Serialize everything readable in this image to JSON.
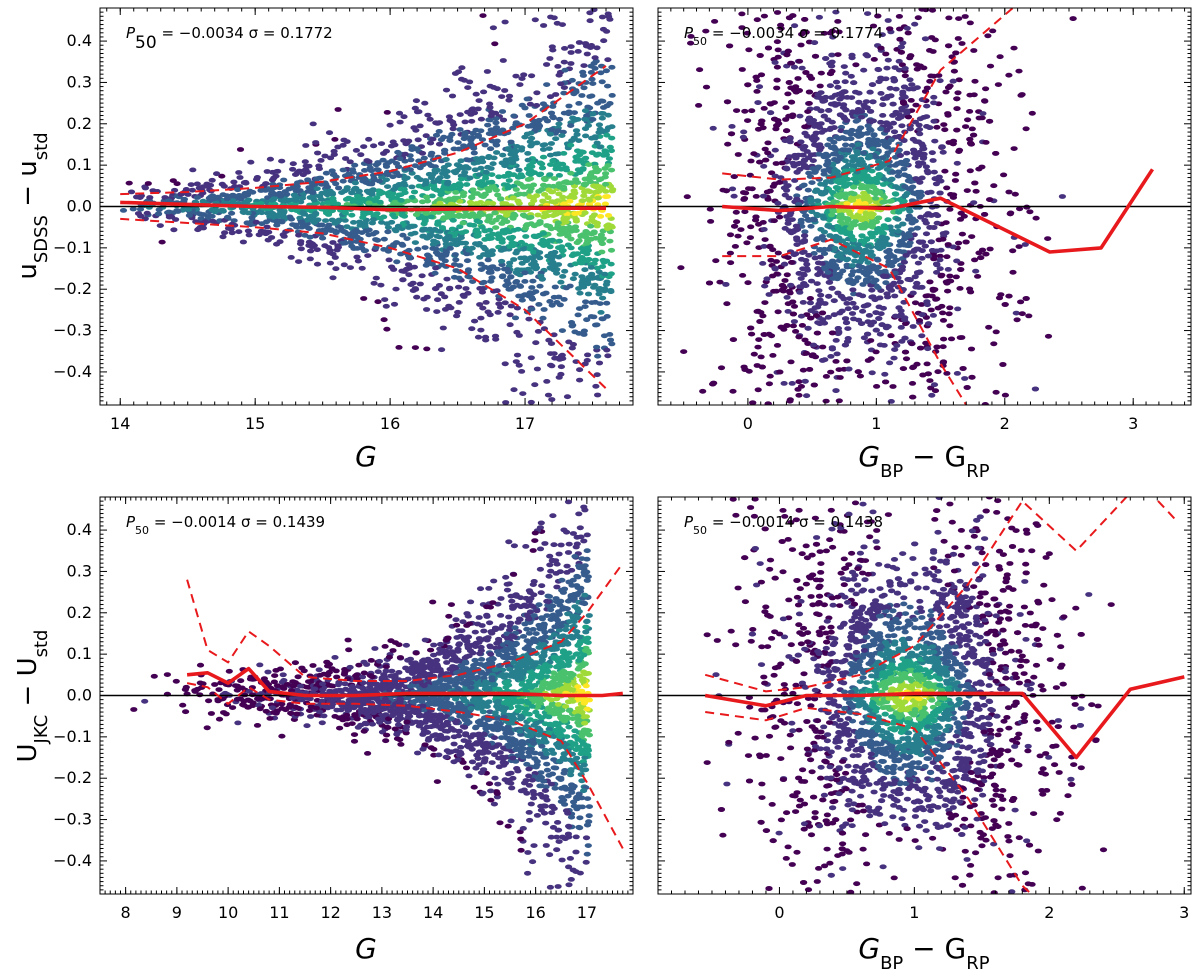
{
  "chart_data": [
    {
      "type": "scatter",
      "subtype": "hexbin-density",
      "xlabel": "G",
      "ylabel_main": "u",
      "ylabel_sub1": "SDSS",
      "ylabel_mid": " − u",
      "ylabel_sub2": "std",
      "annotation": "P50 = −0.0034  σ = 0.1772",
      "ann_p": "P",
      "ann_p_sub": "50",
      "ann_rest": " = −0.0034   σ = 0.1772",
      "xlim": [
        13.85,
        17.8
      ],
      "ylim": [
        -0.48,
        0.48
      ],
      "xticks": [
        14,
        15,
        16,
        17
      ],
      "yticks": [
        -0.4,
        -0.3,
        -0.2,
        -0.1,
        0.0,
        0.1,
        0.2,
        0.3,
        0.4
      ],
      "ytick_labels": [
        "−0.4",
        "−0.3",
        "−0.2",
        "−0.1",
        "0.0",
        "0.1",
        "0.2",
        "0.3",
        "0.4"
      ],
      "density": {
        "x_range": [
          14.0,
          17.65
        ],
        "center_x": 16.8,
        "spread_start": 0.02,
        "spread_end": 0.3
      },
      "median_line": {
        "x": [
          14.0,
          14.5,
          15.0,
          15.5,
          16.0,
          16.5,
          17.0,
          17.6
        ],
        "y": [
          0.01,
          0.005,
          0.0,
          -0.002,
          -0.008,
          -0.006,
          -0.004,
          -0.004
        ]
      },
      "upper_dashed": {
        "x": [
          14.0,
          14.5,
          15.0,
          15.5,
          16.0,
          16.5,
          17.0,
          17.6
        ],
        "y": [
          0.03,
          0.035,
          0.045,
          0.06,
          0.085,
          0.13,
          0.2,
          0.34
        ]
      },
      "lower_dashed": {
        "x": [
          14.0,
          14.5,
          15.0,
          15.5,
          16.0,
          16.5,
          17.0,
          17.6
        ],
        "y": [
          -0.03,
          -0.04,
          -0.05,
          -0.065,
          -0.1,
          -0.15,
          -0.25,
          -0.44
        ]
      }
    },
    {
      "type": "scatter",
      "subtype": "hexbin-density",
      "xlabel_main": "G",
      "xlabel_sub1": "BP",
      "xlabel_mid": " − G",
      "xlabel_sub2": "RP",
      "ann_p": "P",
      "ann_p_sub": "50",
      "ann_rest": " = −0.0034   σ = 0.1774",
      "xlim": [
        -0.7,
        3.45
      ],
      "ylim": [
        -0.48,
        0.48
      ],
      "xticks": [
        0,
        1,
        2,
        3
      ],
      "yticks": [
        -0.4,
        -0.3,
        -0.2,
        -0.1,
        0.0,
        0.1,
        0.2,
        0.3,
        0.4
      ],
      "density": {
        "x_range": [
          -0.55,
          3.1
        ],
        "center_x": 0.88
      },
      "median_line": {
        "x": [
          -0.2,
          0.25,
          0.65,
          1.1,
          1.5,
          2.35,
          2.75,
          3.15
        ],
        "y": [
          0.0,
          -0.01,
          0.0,
          -0.005,
          0.02,
          -0.11,
          -0.1,
          0.09
        ]
      },
      "upper_dashed": {
        "x": [
          -0.2,
          0.25,
          0.65,
          1.1,
          1.5,
          2.1
        ],
        "y": [
          0.08,
          0.065,
          0.07,
          0.11,
          0.33,
          0.49
        ]
      },
      "lower_dashed": {
        "x": [
          -0.2,
          0.25,
          0.65,
          1.1,
          1.5,
          1.72
        ],
        "y": [
          -0.12,
          -0.12,
          -0.08,
          -0.15,
          -0.38,
          -0.49
        ]
      }
    },
    {
      "type": "scatter",
      "subtype": "hexbin-density",
      "xlabel": "G",
      "ylabel_main": "U",
      "ylabel_sub1": "JKC",
      "ylabel_mid": " − U",
      "ylabel_sub2": "std",
      "ann_p": "P",
      "ann_p_sub": "50",
      "ann_rest": " = −0.0014   σ = 0.1439",
      "xlim": [
        7.5,
        17.9
      ],
      "ylim": [
        -0.48,
        0.48
      ],
      "xticks": [
        8,
        9,
        10,
        11,
        12,
        13,
        14,
        15,
        16,
        17
      ],
      "yticks": [
        -0.4,
        -0.3,
        -0.2,
        -0.1,
        0.0,
        0.1,
        0.2,
        0.3,
        0.4
      ],
      "density": {
        "x_range": [
          8.0,
          17.05
        ],
        "center_x": 16.3
      },
      "median_line": {
        "x": [
          9.2,
          9.6,
          10.0,
          10.4,
          10.8,
          11.5,
          12.5,
          13.5,
          14.5,
          15.5,
          16.5,
          17.0,
          17.3,
          17.7
        ],
        "y": [
          0.05,
          0.055,
          0.03,
          0.065,
          0.01,
          0.0,
          0.0,
          0.005,
          0.005,
          0.005,
          0.0,
          0.0,
          0.0,
          0.005
        ]
      },
      "upper_dashed": {
        "x": [
          9.2,
          9.6,
          10.0,
          10.4,
          10.8,
          11.5,
          12.5,
          13.5,
          14.5,
          15.5,
          16.5,
          17.0,
          17.7
        ],
        "y": [
          0.28,
          0.11,
          0.08,
          0.155,
          0.12,
          0.045,
          0.035,
          0.035,
          0.05,
          0.08,
          0.13,
          0.2,
          0.32
        ]
      },
      "lower_dashed": {
        "x": [
          9.2,
          9.6,
          10.0,
          10.4,
          10.8,
          11.5,
          12.5,
          13.5,
          14.5,
          15.5,
          16.5,
          17.0,
          17.7
        ],
        "y": [
          0.03,
          0.02,
          -0.02,
          0.02,
          -0.01,
          -0.02,
          -0.02,
          -0.025,
          -0.04,
          -0.06,
          -0.11,
          -0.21,
          -0.37
        ]
      }
    },
    {
      "type": "scatter",
      "subtype": "hexbin-density",
      "xlabel_main": "G",
      "xlabel_sub1": "BP",
      "xlabel_mid": " − G",
      "xlabel_sub2": "RP",
      "ann_p": "P",
      "ann_p_sub": "50",
      "ann_rest": " = −0.0014   σ = 0.1438",
      "xlim": [
        -0.9,
        3.05
      ],
      "ylim": [
        -0.48,
        0.48
      ],
      "xticks": [
        0,
        1,
        2,
        3
      ],
      "yticks": [
        -0.4,
        -0.3,
        -0.2,
        -0.1,
        0.0,
        0.1,
        0.2,
        0.3,
        0.4
      ],
      "density": {
        "x_range": [
          -0.55,
          2.5
        ],
        "center_x": 0.95
      },
      "median_line": {
        "x": [
          -0.55,
          -0.1,
          0.2,
          0.6,
          1.0,
          1.4,
          1.8,
          2.2,
          2.6,
          3.0
        ],
        "y": [
          0.0,
          -0.025,
          0.0,
          0.0,
          0.005,
          0.005,
          0.005,
          -0.15,
          0.015,
          0.045
        ]
      },
      "upper_dashed": {
        "x": [
          -0.55,
          -0.1,
          0.2,
          0.6,
          1.0,
          1.4,
          1.8,
          2.2,
          2.6,
          2.75,
          2.95
        ],
        "y": [
          0.05,
          0.01,
          0.02,
          0.05,
          0.12,
          0.27,
          0.47,
          0.35,
          0.49,
          0.49,
          0.42
        ]
      },
      "lower_dashed": {
        "x": [
          -0.55,
          -0.1,
          0.2,
          0.6,
          1.0,
          1.4,
          1.8,
          1.9
        ],
        "y": [
          -0.04,
          -0.06,
          -0.03,
          -0.045,
          -0.08,
          -0.25,
          -0.46,
          -0.49
        ]
      }
    }
  ]
}
